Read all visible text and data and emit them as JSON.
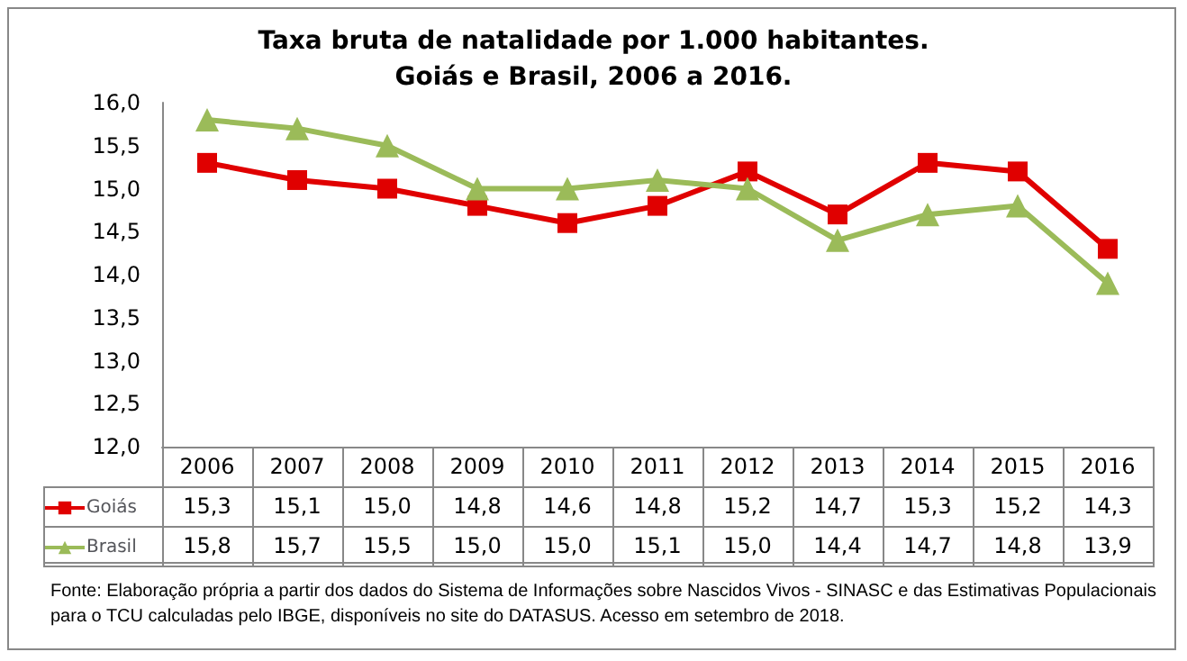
{
  "chart_data": {
    "type": "line",
    "title": "Taxa bruta de natalidade por 1.000 habitantes.\nGoiás e Brasil, 2006 a 2016.",
    "categories": [
      "2006",
      "2007",
      "2008",
      "2009",
      "2010",
      "2011",
      "2012",
      "2013",
      "2014",
      "2015",
      "2016"
    ],
    "series": [
      {
        "name": "Goiás",
        "color": "#e00000",
        "marker": "square",
        "values": [
          15.3,
          15.1,
          15.0,
          14.8,
          14.6,
          14.8,
          15.2,
          14.7,
          15.3,
          15.2,
          14.3
        ],
        "value_labels": [
          "15,3",
          "15,1",
          "15,0",
          "14,8",
          "14,6",
          "14,8",
          "15,2",
          "14,7",
          "15,3",
          "15,2",
          "14,3"
        ]
      },
      {
        "name": "Brasil",
        "color": "#9bbb59",
        "marker": "triangle",
        "values": [
          15.8,
          15.7,
          15.5,
          15.0,
          15.0,
          15.1,
          15.0,
          14.4,
          14.7,
          14.8,
          13.9
        ],
        "value_labels": [
          "15,8",
          "15,7",
          "15,5",
          "15,0",
          "15,0",
          "15,1",
          "15,0",
          "14,4",
          "14,7",
          "14,8",
          "13,9"
        ]
      }
    ],
    "ylim": [
      12,
      16
    ],
    "yticks": [
      {
        "value": 12,
        "label": "12,0"
      },
      {
        "value": 12.5,
        "label": "12,5"
      },
      {
        "value": 13,
        "label": "13,0"
      },
      {
        "value": 13.5,
        "label": "13,5"
      },
      {
        "value": 14,
        "label": "14,0"
      },
      {
        "value": 14.5,
        "label": "14,5"
      },
      {
        "value": 15,
        "label": "15,0"
      },
      {
        "value": 15.5,
        "label": "15,5"
      },
      {
        "value": 16,
        "label": "16,0"
      }
    ],
    "grid": false,
    "legend": "bottom left",
    "annotations": [
      "Fonte: Elaboração própria a partir dos dados do Sistema de Informações sobre Nascidos Vivos - SINASC e das Estimativas Populacionais para o TCU calculadas pelo IBGE, disponíveis no site do DATASUS. Acesso em setembro de 2018."
    ]
  }
}
